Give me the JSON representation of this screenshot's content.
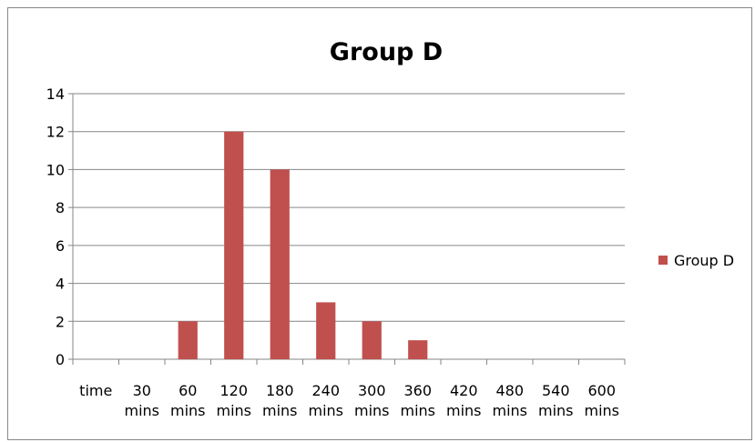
{
  "chart_data": {
    "type": "bar",
    "title": "Group D",
    "xlabel": "",
    "ylabel": "",
    "categories": [
      [
        "time"
      ],
      [
        "30",
        "mins"
      ],
      [
        "60",
        "mins"
      ],
      [
        "120",
        "mins"
      ],
      [
        "180",
        "mins"
      ],
      [
        "240",
        "mins"
      ],
      [
        "300",
        "mins"
      ],
      [
        "360",
        "mins"
      ],
      [
        "420",
        "mins"
      ],
      [
        "480",
        "mins"
      ],
      [
        "540",
        "mins"
      ],
      [
        "600",
        "mins"
      ]
    ],
    "series": [
      {
        "name": "Group D",
        "values": [
          0,
          0,
          2,
          12,
          10,
          3,
          2,
          1,
          0,
          0,
          0,
          0
        ],
        "color": "#C0504D"
      }
    ],
    "ylim": [
      0,
      14
    ],
    "yticks": [
      0,
      2,
      4,
      6,
      8,
      10,
      12,
      14
    ],
    "grid": true,
    "legend_position": "right"
  }
}
